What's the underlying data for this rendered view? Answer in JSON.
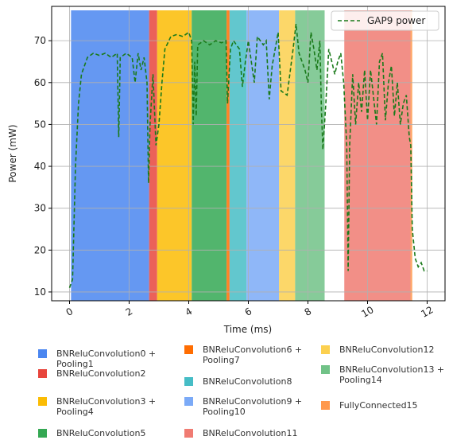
{
  "chart_data": {
    "type": "line",
    "x_label": "Time (ms)",
    "y_label": "Power (mW)",
    "xlim": [
      -0.6,
      12.6
    ],
    "ylim": [
      7.9,
      78.2
    ],
    "xticks": [
      0,
      2,
      4,
      6,
      8,
      10,
      12
    ],
    "yticks": [
      10,
      20,
      30,
      40,
      50,
      60,
      70
    ],
    "grid": true,
    "legend": "upper right",
    "regions": [
      {
        "name": "BNReluConvolution0 + Pooling1",
        "color": "#4a86f0",
        "start": 0.05,
        "end": 2.67
      },
      {
        "name": "BNReluConvolution2",
        "color": "#e8453c",
        "start": 2.67,
        "end": 2.94
      },
      {
        "name": "BNReluConvolution3 + Pooling4",
        "color": "#fbbc04",
        "start": 2.94,
        "end": 4.1
      },
      {
        "name": "BNReluConvolution5",
        "color": "#34a853",
        "start": 4.1,
        "end": 5.27
      },
      {
        "name": "BNReluConvolution6 + Pooling7",
        "color": "#ff6d01",
        "start": 5.27,
        "end": 5.37
      },
      {
        "name": "BNReluConvolution8",
        "color": "#46bdc6",
        "start": 5.37,
        "end": 5.94
      },
      {
        "name": "BNReluConvolution9 + Pooling10",
        "color": "#7baaf7",
        "start": 5.94,
        "end": 7.03
      },
      {
        "name": "BNReluConvolution11",
        "color": "#f07b72",
        "start": 9.22,
        "end": 11.44
      },
      {
        "name": "BNReluConvolution12",
        "color": "#fcd04f",
        "start": 7.03,
        "end": 7.57
      },
      {
        "name": "BNReluConvolution13 + Pooling14",
        "color": "#71c287",
        "start": 7.57,
        "end": 8.56
      },
      {
        "name": "FullyConnected15",
        "color": "#ff994d",
        "start": 11.44,
        "end": 11.5
      }
    ],
    "x": [
      0.0,
      0.1,
      0.2,
      0.3,
      0.4,
      0.6,
      0.8,
      1.0,
      1.2,
      1.4,
      1.6,
      1.65,
      1.7,
      1.9,
      2.1,
      2.2,
      2.3,
      2.4,
      2.5,
      2.6,
      2.65,
      2.7,
      2.8,
      2.9,
      3.0,
      3.1,
      3.2,
      3.4,
      3.6,
      3.8,
      4.0,
      4.1,
      4.15,
      4.2,
      4.25,
      4.3,
      4.5,
      4.7,
      4.9,
      5.1,
      5.25,
      5.3,
      5.4,
      5.5,
      5.7,
      5.8,
      5.9,
      6.0,
      6.2,
      6.3,
      6.5,
      6.6,
      6.7,
      6.8,
      7.0,
      7.1,
      7.3,
      7.5,
      7.6,
      7.7,
      7.9,
      8.0,
      8.1,
      8.2,
      8.3,
      8.4,
      8.45,
      8.5,
      8.6,
      8.7,
      8.9,
      9.0,
      9.1,
      9.2,
      9.3,
      9.35,
      9.4,
      9.5,
      9.6,
      9.7,
      9.8,
      9.9,
      10.0,
      10.1,
      10.3,
      10.4,
      10.5,
      10.6,
      10.7,
      10.8,
      10.9,
      11.0,
      11.1,
      11.2,
      11.3,
      11.4,
      11.45,
      11.5,
      11.6,
      11.7,
      11.8,
      11.9,
      12.0
    ],
    "series": [
      {
        "name": "GAP9 power",
        "color": "#1a7a1a",
        "values": [
          11,
          13,
          40,
          55,
          62,
          66,
          67,
          66.5,
          67,
          66,
          67,
          47,
          66,
          67,
          66,
          60,
          67,
          63,
          66,
          60,
          36,
          50,
          62,
          45,
          50,
          60,
          68,
          71,
          71.5,
          71,
          72,
          70,
          50,
          65,
          52,
          69,
          70,
          69,
          70,
          69.5,
          70,
          55,
          68,
          70,
          68,
          59,
          65,
          70,
          60,
          71,
          69,
          70,
          56,
          64,
          72,
          58,
          57,
          68,
          74,
          67,
          63,
          60,
          72,
          68,
          63,
          70,
          54,
          44,
          55,
          68,
          62,
          65,
          67,
          60,
          45,
          15,
          45,
          62,
          50,
          60,
          53,
          63,
          51,
          63,
          50,
          65,
          67,
          51,
          60,
          64,
          52,
          60,
          50,
          55,
          57,
          47,
          45,
          25,
          18,
          16,
          17,
          15,
          15
        ]
      }
    ]
  }
}
